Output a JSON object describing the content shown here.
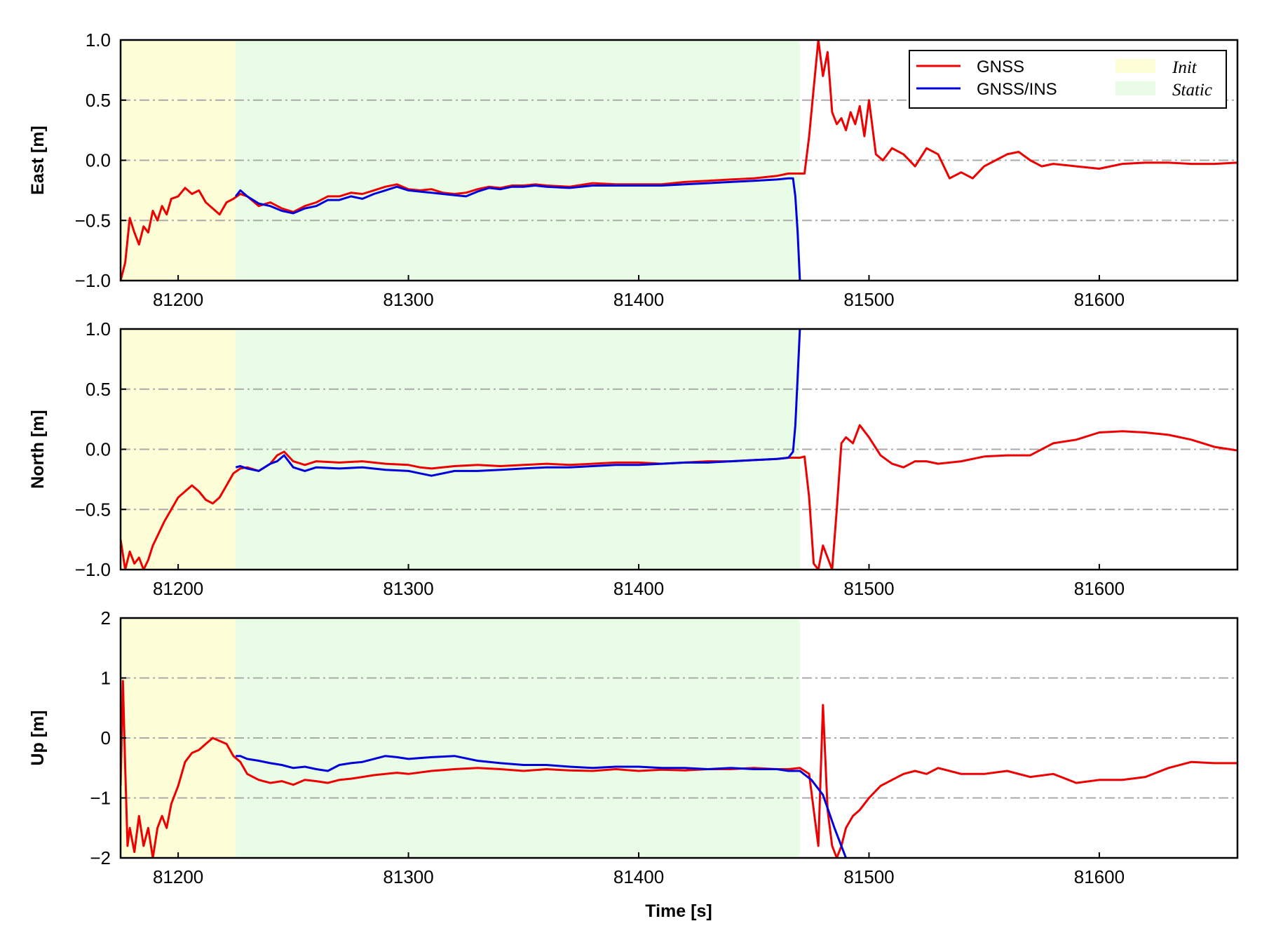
{
  "chart_data": {
    "type": "line",
    "xlabel": "Time [s]",
    "xlim": [
      81175,
      81660
    ],
    "xticks": [
      81200,
      81300,
      81400,
      81500,
      81600
    ],
    "xtick_labels": [
      "81200",
      "81300",
      "81400",
      "81500",
      "81600"
    ],
    "grid": "horizontal dash-dot",
    "legend": {
      "placement": "top-right (East panel)",
      "lines": [
        {
          "label": "GNSS",
          "color": "#ee0000"
        },
        {
          "label": "GNSS/INS",
          "color": "#0000dd"
        }
      ],
      "spans": [
        {
          "label": "Init",
          "color": "#fdfdd8"
        },
        {
          "label": "Static",
          "color": "#e8fce6"
        }
      ]
    },
    "shaded_regions": [
      {
        "label": "Init",
        "x0": 81175,
        "x1": 81225,
        "color": "#fdfdd8"
      },
      {
        "label": "Static",
        "x0": 81225,
        "x1": 81470,
        "color": "#e8fce6"
      }
    ],
    "panels": [
      {
        "ylabel": "East [m]",
        "ylim": [
          -1.0,
          1.0
        ],
        "yticks": [
          -1.0,
          -0.5,
          0.0,
          0.5,
          1.0
        ],
        "ytick_labels": [
          "−1.0",
          "−0.5",
          "0.0",
          "0.5",
          "1.0"
        ],
        "gridlines": [
          -0.5,
          0.0,
          0.5
        ],
        "series": [
          {
            "name": "GNSS",
            "color": "#ee0000",
            "x": [
              81175,
              81177,
              81179,
              81181,
              81183,
              81185,
              81187,
              81189,
              81191,
              81193,
              81195,
              81197,
              81200,
              81203,
              81206,
              81209,
              81212,
              81215,
              81218,
              81221,
              81224,
              81227,
              81230,
              81235,
              81240,
              81245,
              81250,
              81255,
              81260,
              81265,
              81270,
              81275,
              81280,
              81285,
              81290,
              81295,
              81300,
              81305,
              81310,
              81315,
              81320,
              81325,
              81330,
              81335,
              81340,
              81345,
              81350,
              81355,
              81360,
              81370,
              81380,
              81390,
              81400,
              81410,
              81420,
              81430,
              81440,
              81450,
              81460,
              81465,
              81470,
              81472,
              81474,
              81476,
              81478,
              81480,
              81482,
              81484,
              81486,
              81488,
              81490,
              81492,
              81494,
              81496,
              81498,
              81500,
              81503,
              81506,
              81510,
              81515,
              81520,
              81525,
              81530,
              81535,
              81540,
              81545,
              81550,
              81555,
              81560,
              81565,
              81570,
              81575,
              81580,
              81590,
              81600,
              81610,
              81620,
              81630,
              81640,
              81650,
              81660
            ],
            "y": [
              -1.0,
              -0.85,
              -0.48,
              -0.6,
              -0.7,
              -0.55,
              -0.6,
              -0.42,
              -0.5,
              -0.38,
              -0.45,
              -0.32,
              -0.3,
              -0.23,
              -0.28,
              -0.25,
              -0.35,
              -0.4,
              -0.45,
              -0.35,
              -0.32,
              -0.28,
              -0.3,
              -0.38,
              -0.35,
              -0.4,
              -0.43,
              -0.38,
              -0.35,
              -0.3,
              -0.3,
              -0.27,
              -0.28,
              -0.25,
              -0.22,
              -0.2,
              -0.24,
              -0.25,
              -0.24,
              -0.27,
              -0.28,
              -0.27,
              -0.24,
              -0.22,
              -0.23,
              -0.21,
              -0.21,
              -0.2,
              -0.21,
              -0.22,
              -0.19,
              -0.2,
              -0.2,
              -0.2,
              -0.18,
              -0.17,
              -0.16,
              -0.15,
              -0.13,
              -0.11,
              -0.11,
              -0.11,
              0.2,
              0.6,
              1.0,
              0.7,
              0.9,
              0.4,
              0.3,
              0.35,
              0.25,
              0.4,
              0.3,
              0.45,
              0.2,
              0.5,
              0.05,
              0.0,
              0.1,
              0.05,
              -0.05,
              0.1,
              0.05,
              -0.15,
              -0.1,
              -0.15,
              -0.05,
              0.0,
              0.05,
              0.07,
              0.0,
              -0.05,
              -0.03,
              -0.05,
              -0.07,
              -0.03,
              -0.02,
              -0.02,
              -0.03,
              -0.03,
              -0.02
            ]
          },
          {
            "name": "GNSS/INS",
            "color": "#0000dd",
            "x": [
              81225,
              81227,
              81230,
              81235,
              81240,
              81245,
              81250,
              81255,
              81260,
              81265,
              81270,
              81275,
              81280,
              81285,
              81290,
              81295,
              81300,
              81305,
              81310,
              81315,
              81320,
              81325,
              81330,
              81335,
              81340,
              81345,
              81350,
              81355,
              81360,
              81370,
              81380,
              81390,
              81400,
              81410,
              81420,
              81430,
              81440,
              81450,
              81460,
              81465,
              81467,
              81468,
              81469,
              81470
            ],
            "y": [
              -0.3,
              -0.25,
              -0.3,
              -0.36,
              -0.38,
              -0.42,
              -0.44,
              -0.4,
              -0.38,
              -0.33,
              -0.33,
              -0.3,
              -0.32,
              -0.28,
              -0.25,
              -0.22,
              -0.25,
              -0.26,
              -0.27,
              -0.28,
              -0.29,
              -0.3,
              -0.26,
              -0.23,
              -0.24,
              -0.22,
              -0.22,
              -0.21,
              -0.22,
              -0.23,
              -0.21,
              -0.21,
              -0.21,
              -0.21,
              -0.2,
              -0.19,
              -0.18,
              -0.17,
              -0.16,
              -0.15,
              -0.15,
              -0.3,
              -0.6,
              -1.0
            ]
          }
        ]
      },
      {
        "ylabel": "North [m]",
        "ylim": [
          -1.0,
          1.0
        ],
        "yticks": [
          -1.0,
          -0.5,
          0.0,
          0.5,
          1.0
        ],
        "ytick_labels": [
          "−1.0",
          "−0.5",
          "0.0",
          "0.5",
          "1.0"
        ],
        "gridlines": [
          -0.5,
          0.0,
          0.5
        ],
        "series": [
          {
            "name": "GNSS",
            "color": "#ee0000",
            "x": [
              81175,
              81177,
              81179,
              81181,
              81183,
              81185,
              81187,
              81189,
              81191,
              81194,
              81197,
              81200,
              81203,
              81206,
              81209,
              81212,
              81215,
              81218,
              81221,
              81224,
              81227,
              81230,
              81235,
              81240,
              81243,
              81246,
              81250,
              81255,
              81260,
              81270,
              81280,
              81290,
              81300,
              81305,
              81310,
              81320,
              81330,
              81340,
              81350,
              81360,
              81370,
              81380,
              81390,
              81400,
              81410,
              81420,
              81430,
              81440,
              81450,
              81460,
              81465,
              81470,
              81472,
              81474,
              81476,
              81478,
              81480,
              81482,
              81484,
              81486,
              81488,
              81490,
              81493,
              81496,
              81500,
              81505,
              81510,
              81515,
              81520,
              81525,
              81530,
              81540,
              81550,
              81560,
              81570,
              81580,
              81590,
              81600,
              81610,
              81620,
              81630,
              81640,
              81650,
              81660
            ],
            "y": [
              -0.75,
              -1.0,
              -0.85,
              -0.95,
              -0.9,
              -1.0,
              -0.92,
              -0.8,
              -0.72,
              -0.6,
              -0.5,
              -0.4,
              -0.35,
              -0.3,
              -0.35,
              -0.42,
              -0.45,
              -0.4,
              -0.3,
              -0.2,
              -0.16,
              -0.15,
              -0.18,
              -0.12,
              -0.05,
              -0.02,
              -0.1,
              -0.13,
              -0.1,
              -0.11,
              -0.1,
              -0.12,
              -0.13,
              -0.15,
              -0.16,
              -0.14,
              -0.13,
              -0.14,
              -0.13,
              -0.12,
              -0.13,
              -0.12,
              -0.11,
              -0.11,
              -0.12,
              -0.11,
              -0.1,
              -0.1,
              -0.09,
              -0.08,
              -0.07,
              -0.07,
              -0.06,
              -0.4,
              -0.95,
              -1.0,
              -0.8,
              -0.9,
              -1.0,
              -0.5,
              0.05,
              0.1,
              0.05,
              0.2,
              0.1,
              -0.05,
              -0.12,
              -0.15,
              -0.1,
              -0.1,
              -0.12,
              -0.1,
              -0.06,
              -0.05,
              -0.05,
              0.05,
              0.08,
              0.14,
              0.15,
              0.14,
              0.12,
              0.08,
              0.02,
              -0.01
            ]
          },
          {
            "name": "GNSS/INS",
            "color": "#0000dd",
            "x": [
              81225,
              81227,
              81230,
              81235,
              81240,
              81243,
              81246,
              81250,
              81255,
              81260,
              81270,
              81280,
              81290,
              81300,
              81305,
              81310,
              81320,
              81330,
              81340,
              81350,
              81360,
              81370,
              81380,
              81390,
              81400,
              81410,
              81420,
              81430,
              81440,
              81450,
              81460,
              81465,
              81467,
              81468,
              81469,
              81470
            ],
            "y": [
              -0.15,
              -0.14,
              -0.16,
              -0.18,
              -0.12,
              -0.1,
              -0.05,
              -0.15,
              -0.18,
              -0.15,
              -0.16,
              -0.15,
              -0.17,
              -0.18,
              -0.2,
              -0.22,
              -0.18,
              -0.18,
              -0.17,
              -0.16,
              -0.15,
              -0.15,
              -0.14,
              -0.13,
              -0.13,
              -0.12,
              -0.11,
              -0.11,
              -0.1,
              -0.09,
              -0.08,
              -0.07,
              -0.02,
              0.2,
              0.6,
              1.0
            ]
          }
        ]
      },
      {
        "ylabel": "Up [m]",
        "ylim": [
          -2,
          2
        ],
        "yticks": [
          -2,
          -1,
          0,
          1,
          2
        ],
        "ytick_labels": [
          "−2",
          "−1",
          "0",
          "1",
          "2"
        ],
        "gridlines": [
          -1,
          0,
          1
        ],
        "series": [
          {
            "name": "GNSS",
            "color": "#ee0000",
            "x": [
              81175,
              81176,
              81177,
              81178,
              81179,
              81181,
              81183,
              81185,
              81187,
              81189,
              81191,
              81193,
              81195,
              81197,
              81200,
              81203,
              81206,
              81209,
              81212,
              81215,
              81218,
              81221,
              81224,
              81227,
              81230,
              81235,
              81240,
              81245,
              81250,
              81255,
              81260,
              81265,
              81270,
              81275,
              81280,
              81285,
              81290,
              81295,
              81300,
              81310,
              81320,
              81330,
              81340,
              81350,
              81360,
              81370,
              81380,
              81390,
              81400,
              81410,
              81420,
              81430,
              81440,
              81450,
              81460,
              81465,
              81470,
              81472,
              81474,
              81476,
              81478,
              81480,
              81482,
              81484,
              81486,
              81488,
              81490,
              81493,
              81496,
              81500,
              81505,
              81510,
              81515,
              81520,
              81525,
              81530,
              81535,
              81540,
              81550,
              81560,
              81570,
              81580,
              81590,
              81600,
              81610,
              81620,
              81630,
              81640,
              81650,
              81660
            ],
            "y": [
              -0.8,
              0.95,
              -0.5,
              -1.8,
              -1.5,
              -1.9,
              -1.3,
              -1.8,
              -1.5,
              -2.0,
              -1.5,
              -1.3,
              -1.5,
              -1.1,
              -0.8,
              -0.4,
              -0.25,
              -0.2,
              -0.1,
              0.0,
              -0.05,
              -0.1,
              -0.3,
              -0.4,
              -0.6,
              -0.7,
              -0.75,
              -0.72,
              -0.78,
              -0.7,
              -0.72,
              -0.75,
              -0.7,
              -0.68,
              -0.65,
              -0.62,
              -0.6,
              -0.58,
              -0.6,
              -0.55,
              -0.52,
              -0.5,
              -0.52,
              -0.55,
              -0.52,
              -0.54,
              -0.55,
              -0.52,
              -0.55,
              -0.53,
              -0.54,
              -0.52,
              -0.52,
              -0.5,
              -0.52,
              -0.52,
              -0.5,
              -0.55,
              -0.6,
              -1.2,
              -1.8,
              0.55,
              -1.2,
              -1.8,
              -2.0,
              -1.8,
              -1.5,
              -1.3,
              -1.2,
              -1.0,
              -0.8,
              -0.7,
              -0.6,
              -0.55,
              -0.6,
              -0.5,
              -0.55,
              -0.6,
              -0.6,
              -0.55,
              -0.65,
              -0.6,
              -0.75,
              -0.7,
              -0.7,
              -0.65,
              -0.5,
              -0.4,
              -0.42,
              -0.42
            ]
          },
          {
            "name": "GNSS/INS",
            "color": "#0000dd",
            "x": [
              81225,
              81227,
              81230,
              81235,
              81240,
              81245,
              81250,
              81255,
              81260,
              81265,
              81270,
              81275,
              81280,
              81285,
              81290,
              81295,
              81300,
              81310,
              81320,
              81330,
              81340,
              81350,
              81360,
              81370,
              81380,
              81390,
              81400,
              81410,
              81420,
              81430,
              81440,
              81450,
              81460,
              81465,
              81470,
              81475,
              81480,
              81485,
              81490
            ],
            "y": [
              -0.3,
              -0.3,
              -0.35,
              -0.38,
              -0.42,
              -0.45,
              -0.5,
              -0.48,
              -0.52,
              -0.55,
              -0.45,
              -0.42,
              -0.4,
              -0.35,
              -0.3,
              -0.32,
              -0.35,
              -0.32,
              -0.3,
              -0.38,
              -0.42,
              -0.45,
              -0.45,
              -0.48,
              -0.5,
              -0.48,
              -0.48,
              -0.5,
              -0.5,
              -0.52,
              -0.5,
              -0.52,
              -0.52,
              -0.55,
              -0.55,
              -0.7,
              -0.95,
              -1.5,
              -2.0
            ]
          }
        ]
      }
    ]
  }
}
